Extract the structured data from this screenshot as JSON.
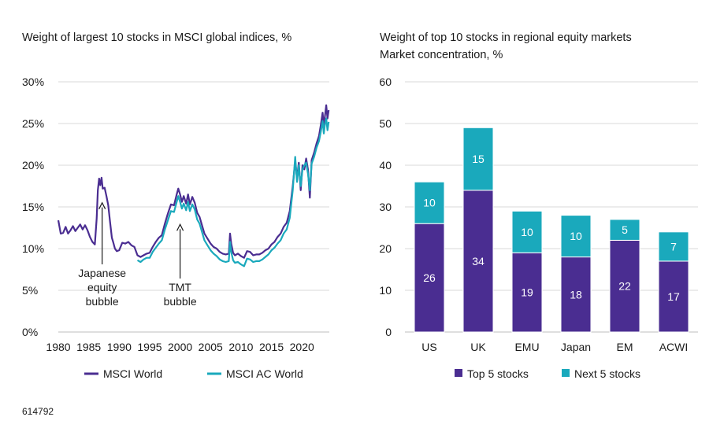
{
  "chart_data": [
    {
      "type": "line",
      "title": "Weight of largest 10 stocks in MSCI global indices, %",
      "xlabel": "",
      "ylabel": "",
      "xlim": [
        1980,
        2024.5
      ],
      "ylim": [
        0,
        30
      ],
      "x_ticks": [
        "1980",
        "1985",
        "1990",
        "1995",
        "2000",
        "2005",
        "2010",
        "2015",
        "2020"
      ],
      "y_ticks": [
        "0%",
        "5%",
        "10%",
        "15%",
        "20%",
        "25%",
        "30%"
      ],
      "series": [
        {
          "name": "MSCI World",
          "color": "#4a2d91",
          "points": [
            [
              1980.0,
              13.4
            ],
            [
              1980.4,
              11.8
            ],
            [
              1980.8,
              11.9
            ],
            [
              1981.2,
              12.6
            ],
            [
              1981.6,
              11.8
            ],
            [
              1982.0,
              12.2
            ],
            [
              1982.4,
              12.7
            ],
            [
              1982.8,
              12.1
            ],
            [
              1983.2,
              12.5
            ],
            [
              1983.6,
              12.9
            ],
            [
              1984.0,
              12.3
            ],
            [
              1984.4,
              12.8
            ],
            [
              1984.8,
              12.2
            ],
            [
              1985.2,
              11.4
            ],
            [
              1985.6,
              10.8
            ],
            [
              1986.0,
              10.5
            ],
            [
              1986.3,
              13.6
            ],
            [
              1986.5,
              17.0
            ],
            [
              1986.7,
              18.4
            ],
            [
              1986.9,
              17.6
            ],
            [
              1987.1,
              18.5
            ],
            [
              1987.3,
              17.2
            ],
            [
              1987.6,
              17.3
            ],
            [
              1987.9,
              16.3
            ],
            [
              1988.2,
              15.2
            ],
            [
              1988.5,
              13.2
            ],
            [
              1988.8,
              11.3
            ],
            [
              1989.0,
              10.8
            ],
            [
              1989.3,
              10.0
            ],
            [
              1989.6,
              9.7
            ],
            [
              1990.0,
              9.8
            ],
            [
              1990.5,
              10.7
            ],
            [
              1991.0,
              10.6
            ],
            [
              1991.5,
              10.8
            ],
            [
              1992.0,
              10.4
            ],
            [
              1992.5,
              10.2
            ],
            [
              1993.0,
              9.2
            ],
            [
              1993.5,
              9.0
            ],
            [
              1994.0,
              9.2
            ],
            [
              1994.5,
              9.4
            ],
            [
              1995.0,
              9.5
            ],
            [
              1995.5,
              10.2
            ],
            [
              1996.0,
              10.8
            ],
            [
              1996.5,
              11.3
            ],
            [
              1997.0,
              11.6
            ],
            [
              1997.5,
              13.0
            ],
            [
              1998.0,
              14.2
            ],
            [
              1998.5,
              15.3
            ],
            [
              1999.0,
              15.2
            ],
            [
              1999.4,
              16.4
            ],
            [
              1999.7,
              17.2
            ],
            [
              2000.0,
              16.5
            ],
            [
              2000.3,
              15.6
            ],
            [
              2000.6,
              16.3
            ],
            [
              2001.0,
              15.4
            ],
            [
              2001.3,
              16.5
            ],
            [
              2001.6,
              15.3
            ],
            [
              2002.0,
              16.2
            ],
            [
              2002.4,
              15.5
            ],
            [
              2002.8,
              14.3
            ],
            [
              2003.2,
              13.8
            ],
            [
              2003.6,
              12.8
            ],
            [
              2004.0,
              11.8
            ],
            [
              2004.5,
              11.2
            ],
            [
              2005.0,
              10.6
            ],
            [
              2005.5,
              10.2
            ],
            [
              2006.0,
              10.0
            ],
            [
              2006.5,
              9.6
            ],
            [
              2007.0,
              9.4
            ],
            [
              2007.5,
              9.3
            ],
            [
              2008.0,
              9.4
            ],
            [
              2008.2,
              11.8
            ],
            [
              2008.4,
              10.6
            ],
            [
              2008.7,
              9.5
            ],
            [
              2009.0,
              9.2
            ],
            [
              2009.5,
              9.4
            ],
            [
              2010.0,
              9.1
            ],
            [
              2010.5,
              8.9
            ],
            [
              2011.0,
              9.7
            ],
            [
              2011.5,
              9.6
            ],
            [
              2012.0,
              9.2
            ],
            [
              2012.5,
              9.3
            ],
            [
              2013.0,
              9.3
            ],
            [
              2013.5,
              9.5
            ],
            [
              2014.0,
              9.8
            ],
            [
              2014.5,
              10.0
            ],
            [
              2015.0,
              10.5
            ],
            [
              2015.5,
              10.8
            ],
            [
              2016.0,
              11.4
            ],
            [
              2016.5,
              11.8
            ],
            [
              2017.0,
              12.6
            ],
            [
              2017.5,
              13.1
            ],
            [
              2018.0,
              14.5
            ],
            [
              2018.5,
              17.5
            ],
            [
              2018.9,
              20.5
            ],
            [
              2019.2,
              18.5
            ],
            [
              2019.5,
              20.3
            ],
            [
              2019.8,
              17.0
            ],
            [
              2020.1,
              20.0
            ],
            [
              2020.4,
              19.5
            ],
            [
              2020.7,
              20.8
            ],
            [
              2021.0,
              19.5
            ],
            [
              2021.3,
              16.1
            ],
            [
              2021.6,
              20.6
            ],
            [
              2022.0,
              21.5
            ],
            [
              2022.4,
              22.6
            ],
            [
              2022.8,
              23.5
            ],
            [
              2023.1,
              24.8
            ],
            [
              2023.4,
              26.3
            ],
            [
              2023.6,
              24.6
            ],
            [
              2023.8,
              26.0
            ],
            [
              2024.0,
              27.2
            ],
            [
              2024.2,
              25.6
            ],
            [
              2024.4,
              26.6
            ]
          ]
        },
        {
          "name": "MSCI AC World",
          "color": "#1aa9bc",
          "points": [
            [
              1993.0,
              8.6
            ],
            [
              1993.5,
              8.4
            ],
            [
              1994.0,
              8.7
            ],
            [
              1994.5,
              8.9
            ],
            [
              1995.0,
              8.9
            ],
            [
              1995.5,
              9.6
            ],
            [
              1996.0,
              10.1
            ],
            [
              1996.5,
              10.6
            ],
            [
              1997.0,
              11.0
            ],
            [
              1997.5,
              12.3
            ],
            [
              1998.0,
              13.4
            ],
            [
              1998.5,
              14.5
            ],
            [
              1999.0,
              14.4
            ],
            [
              1999.4,
              15.5
            ],
            [
              1999.7,
              16.3
            ],
            [
              2000.0,
              15.6
            ],
            [
              2000.3,
              14.8
            ],
            [
              2000.6,
              15.4
            ],
            [
              2001.0,
              14.6
            ],
            [
              2001.3,
              15.6
            ],
            [
              2001.6,
              14.5
            ],
            [
              2002.0,
              15.3
            ],
            [
              2002.4,
              14.7
            ],
            [
              2002.8,
              13.5
            ],
            [
              2003.2,
              13.0
            ],
            [
              2003.6,
              12.0
            ],
            [
              2004.0,
              11.0
            ],
            [
              2004.5,
              10.4
            ],
            [
              2005.0,
              9.8
            ],
            [
              2005.5,
              9.4
            ],
            [
              2006.0,
              9.1
            ],
            [
              2006.5,
              8.7
            ],
            [
              2007.0,
              8.5
            ],
            [
              2007.5,
              8.4
            ],
            [
              2008.0,
              8.5
            ],
            [
              2008.2,
              10.8
            ],
            [
              2008.4,
              9.6
            ],
            [
              2008.7,
              8.6
            ],
            [
              2009.0,
              8.3
            ],
            [
              2009.5,
              8.4
            ],
            [
              2010.0,
              8.1
            ],
            [
              2010.5,
              7.9
            ],
            [
              2011.0,
              8.8
            ],
            [
              2011.5,
              8.7
            ],
            [
              2012.0,
              8.4
            ],
            [
              2012.5,
              8.5
            ],
            [
              2013.0,
              8.5
            ],
            [
              2013.5,
              8.7
            ],
            [
              2014.0,
              9.0
            ],
            [
              2014.5,
              9.3
            ],
            [
              2015.0,
              9.8
            ],
            [
              2015.5,
              10.1
            ],
            [
              2016.0,
              10.6
            ],
            [
              2016.5,
              11.0
            ],
            [
              2017.0,
              11.8
            ],
            [
              2017.5,
              12.3
            ],
            [
              2018.0,
              13.7
            ],
            [
              2018.5,
              17.0
            ],
            [
              2018.9,
              21.0
            ],
            [
              2019.2,
              18.0
            ],
            [
              2019.5,
              20.0
            ],
            [
              2019.8,
              17.5
            ],
            [
              2020.1,
              19.5
            ],
            [
              2020.4,
              20.0
            ],
            [
              2020.7,
              20.3
            ],
            [
              2021.0,
              19.0
            ],
            [
              2021.3,
              17.0
            ],
            [
              2021.6,
              20.2
            ],
            [
              2022.0,
              21.0
            ],
            [
              2022.4,
              22.1
            ],
            [
              2022.8,
              22.9
            ],
            [
              2023.1,
              24.0
            ],
            [
              2023.4,
              25.3
            ],
            [
              2023.6,
              23.8
            ],
            [
              2023.8,
              25.0
            ],
            [
              2024.0,
              25.6
            ],
            [
              2024.2,
              24.2
            ],
            [
              2024.4,
              25.2
            ]
          ]
        }
      ],
      "annotations": [
        {
          "lines": [
            "Japanese",
            "equity",
            "bubble"
          ],
          "x": 1987.2,
          "arrow_to_y": 15.5
        },
        {
          "lines": [
            "TMT",
            "bubble"
          ],
          "x": 2000.0,
          "arrow_to_y": 12.9
        }
      ],
      "legend": "bottom"
    },
    {
      "type": "bar",
      "stacked": true,
      "title": "Weight of top 10 stocks in regional equity markets",
      "subtitle": "Market concentration, %",
      "xlabel": "",
      "ylabel": "",
      "ylim": [
        0,
        60
      ],
      "y_ticks": [
        "0",
        "10",
        "20",
        "30",
        "40",
        "50",
        "60"
      ],
      "categories": [
        "US",
        "UK",
        "EMU",
        "Japan",
        "EM",
        "ACWI"
      ],
      "series": [
        {
          "name": "Top 5 stocks",
          "color": "#4a2d91",
          "values": [
            26,
            34,
            19,
            18,
            22,
            17
          ],
          "labels": [
            "26",
            "34",
            "19",
            "18",
            "22",
            "17"
          ]
        },
        {
          "name": "Next 5 stocks",
          "color": "#1aa9bc",
          "values": [
            10,
            15,
            10,
            10,
            5,
            7
          ],
          "labels": [
            "10",
            "15",
            "10",
            "10",
            "5",
            "7"
          ]
        }
      ],
      "legend": "bottom"
    }
  ],
  "footer": {
    "chart_id": "614792"
  }
}
